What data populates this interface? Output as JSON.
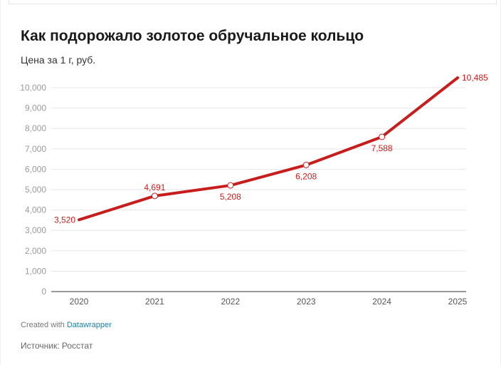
{
  "title": "Как подорожало золотое обручальное кольцо",
  "subtitle": "Цена за 1 г, руб.",
  "footer": {
    "created_prefix": "Created with",
    "brand": "Datawrapper",
    "source": "Источник: Росстат"
  },
  "colors": {
    "line": "#c71e1d",
    "grid": "#e6e6e6",
    "axis": "#333333"
  },
  "chart_data": {
    "type": "line",
    "title": "Как подорожало золотое обручальное кольцо",
    "subtitle": "Цена за 1 г, руб.",
    "xlabel": "",
    "ylabel": "",
    "ylim": [
      0,
      10000
    ],
    "yticks": [
      0,
      1000,
      2000,
      3000,
      4000,
      5000,
      6000,
      7000,
      8000,
      9000,
      10000
    ],
    "ytick_labels": [
      "0",
      "1,000",
      "2,000",
      "3,000",
      "4,000",
      "5,000",
      "6,000",
      "7,000",
      "8,000",
      "9,000",
      "10,000"
    ],
    "categories": [
      "2020",
      "2021",
      "2022",
      "2023",
      "2024",
      "2025"
    ],
    "series": [
      {
        "name": "Цена за 1 г, руб.",
        "values": [
          3520,
          4691,
          5208,
          6208,
          7588,
          10485
        ],
        "labels": [
          "3,520",
          "4,691",
          "5,208",
          "6,208",
          "7,588",
          "10,485"
        ],
        "label_positions": [
          "left",
          "above",
          "below",
          "below",
          "below",
          "right"
        ]
      }
    ],
    "grid": true,
    "legend": "none"
  }
}
